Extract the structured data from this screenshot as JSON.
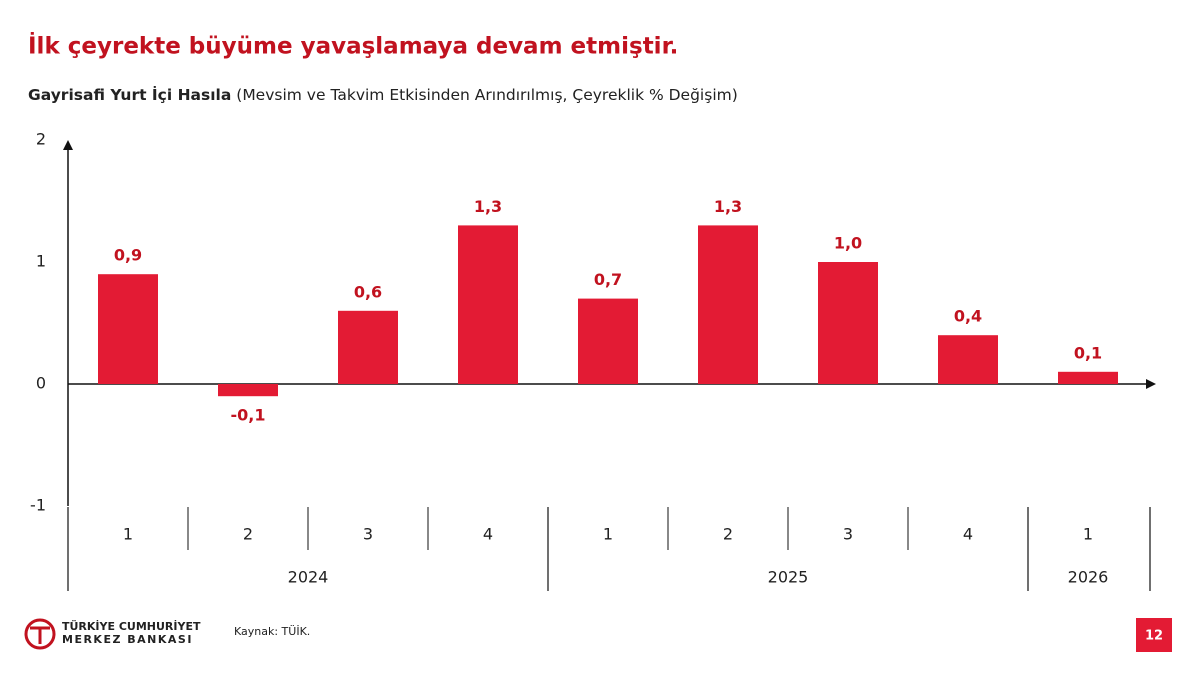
{
  "title": "İlk çeyrekte büyüme yavaşlamaya devam etmiştir.",
  "chart_data": {
    "type": "bar",
    "subtitle_bold": "Gayrisafi Yurt İçi Hasıla",
    "subtitle": "(Mevsim ve Takvim Etkisinden Arındırılmış, Çeyreklik % Değişim)",
    "categories": [
      "1",
      "2",
      "3",
      "4",
      "1",
      "2",
      "3",
      "4",
      "1"
    ],
    "x_groups": [
      {
        "label": "2024",
        "count": 4
      },
      {
        "label": "2025",
        "count": 4
      },
      {
        "label": "2026",
        "count": 1
      }
    ],
    "values": [
      0.9,
      -0.1,
      0.6,
      1.3,
      0.7,
      1.3,
      1.0,
      0.4,
      0.1
    ],
    "value_labels": [
      "0,9",
      "-0,1",
      "0,6",
      "1,3",
      "0,7",
      "1,3",
      "1,0",
      "0,4",
      "0,1"
    ],
    "color": "#e31b34",
    "ylim": [
      -1,
      2
    ],
    "yticks": [
      -1,
      0,
      1,
      2
    ]
  },
  "footer": {
    "source": "Kaynak: TÜİK.",
    "logo_line1": "TÜRKİYE CUMHURİYET",
    "logo_line2": "MERKEZ BANKASI",
    "page": "12"
  }
}
